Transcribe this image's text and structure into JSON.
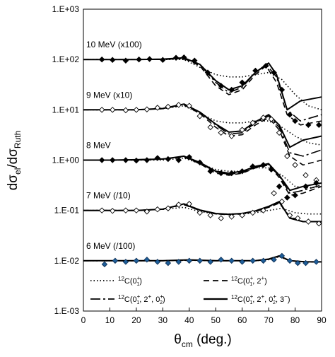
{
  "chart_data": {
    "type": "scatter",
    "title": "",
    "xlabel": {
      "main": "θ",
      "sub": "cm",
      "rest": " (deg.)"
    },
    "ylabel": {
      "d1": "dσ",
      "sub1": "el",
      "slash": "/dσ",
      "sub2": "Ruth"
    },
    "xlim": [
      0,
      90
    ],
    "ylim": [
      0.001,
      1000
    ],
    "log_y": true,
    "grid": false,
    "xticks": [
      "0",
      "10",
      "20",
      "30",
      "40",
      "50",
      "60",
      "70",
      "80",
      "90"
    ],
    "yticks": [
      "1.E-03",
      "1.E-02",
      "1.E-01",
      "1.E+00",
      "1.E+01",
      "1.E+02",
      "1.E+03"
    ],
    "legend": {
      "placement": "bottom",
      "items": [
        {
          "style": "dotted",
          "base": "12C(0",
          "sup": "+",
          "sub": "1",
          "tail": ")"
        },
        {
          "style": "dashed",
          "base": "12C(0",
          "sup": "+",
          "sub": "1",
          "tail": ", 2+)"
        },
        {
          "style": "longdash",
          "base": "12C(0",
          "sup": "+",
          "sub": "1",
          "tail": ", 2+, 0+2)"
        },
        {
          "style": "solid",
          "base": "12C(0",
          "sup": "+",
          "sub": "1",
          "tail": ", 2+, 0+2, 3−)"
        }
      ]
    },
    "energies": [
      {
        "label": "10 MeV   (x100)",
        "scale": 100,
        "marker": "filled-diamond",
        "data_x": [
          7,
          11,
          16,
          21,
          25,
          30,
          35,
          38,
          42,
          47,
          52,
          56,
          60,
          65,
          69,
          72,
          75,
          78,
          80,
          85,
          89
        ],
        "data_y": [
          1.0,
          0.98,
          0.95,
          1.0,
          1.02,
          0.98,
          1.08,
          1.1,
          0.95,
          0.55,
          0.3,
          0.25,
          0.35,
          0.6,
          0.75,
          0.55,
          0.25,
          0.08,
          0.06,
          0.05,
          0.05
        ],
        "curves": {
          "dotted": {
            "x": [
              0,
              10,
              20,
              30,
              38,
              44,
              50,
              55,
              60,
              65,
              70,
              75,
              80,
              85,
              90
            ],
            "y": [
              1.0,
              1.0,
              1.0,
              1.0,
              1.0,
              0.7,
              0.5,
              0.45,
              0.45,
              0.5,
              0.55,
              0.4,
              0.2,
              0.12,
              0.1
            ]
          },
          "dashed": {
            "x": [
              0,
              10,
              20,
              30,
              38,
              44,
              50,
              55,
              60,
              65,
              69,
              73,
              77,
              82,
              90
            ],
            "y": [
              1.0,
              1.0,
              1.0,
              1.0,
              1.05,
              0.75,
              0.3,
              0.2,
              0.25,
              0.5,
              0.75,
              0.35,
              0.08,
              0.05,
              0.06
            ]
          },
          "longdash": {
            "x": [
              0,
              10,
              20,
              30,
              38,
              44,
              50,
              55,
              60,
              65,
              69,
              73,
              77,
              82,
              90
            ],
            "y": [
              1.0,
              1.0,
              1.0,
              1.0,
              1.08,
              0.8,
              0.35,
              0.22,
              0.28,
              0.55,
              0.8,
              0.45,
              0.1,
              0.06,
              0.08
            ]
          },
          "solid": {
            "x": [
              0,
              10,
              20,
              30,
              38,
              44,
              50,
              55,
              60,
              65,
              70,
              73,
              77,
              82,
              90
            ],
            "y": [
              1.0,
              1.0,
              1.0,
              1.02,
              1.08,
              0.8,
              0.38,
              0.25,
              0.3,
              0.55,
              0.85,
              0.5,
              0.1,
              0.15,
              0.18
            ]
          }
        }
      },
      {
        "label": "9 MeV   (x10)",
        "scale": 10,
        "marker": "open-diamond",
        "data_x": [
          7,
          11,
          16,
          20,
          24,
          28,
          32,
          36,
          40,
          44,
          48,
          52,
          56,
          60,
          64,
          68,
          71,
          74,
          77,
          80,
          84,
          88
        ],
        "data_y": [
          1.0,
          1.0,
          0.98,
          1.0,
          1.02,
          1.1,
          1.15,
          1.25,
          1.2,
          0.75,
          0.45,
          0.35,
          0.3,
          0.4,
          0.55,
          0.7,
          0.65,
          0.35,
          0.12,
          0.08,
          0.05,
          0.04
        ],
        "curves": {
          "dotted": {
            "x": [
              0,
              10,
              20,
              30,
              38,
              44,
              50,
              55,
              60,
              65,
              70,
              75,
              80,
              85,
              90
            ],
            "y": [
              1.0,
              1.0,
              1.0,
              1.05,
              1.2,
              0.85,
              0.6,
              0.55,
              0.55,
              0.6,
              0.6,
              0.45,
              0.3,
              0.22,
              0.2
            ]
          },
          "dashed": {
            "x": [
              0,
              10,
              20,
              30,
              38,
              44,
              50,
              55,
              60,
              65,
              70,
              74,
              78,
              83,
              90
            ],
            "y": [
              1.0,
              1.0,
              1.0,
              1.05,
              1.25,
              0.85,
              0.45,
              0.3,
              0.32,
              0.5,
              0.7,
              0.4,
              0.12,
              0.08,
              0.1
            ]
          },
          "longdash": {
            "x": [
              0,
              10,
              20,
              30,
              38,
              44,
              50,
              55,
              60,
              65,
              70,
              74,
              78,
              83,
              90
            ],
            "y": [
              1.0,
              1.0,
              1.0,
              1.06,
              1.28,
              0.9,
              0.5,
              0.33,
              0.35,
              0.55,
              0.75,
              0.45,
              0.14,
              0.12,
              0.16
            ]
          },
          "solid": {
            "x": [
              0,
              10,
              20,
              30,
              38,
              44,
              50,
              55,
              60,
              65,
              70,
              74,
              78,
              83,
              90
            ],
            "y": [
              1.0,
              1.0,
              1.0,
              1.06,
              1.3,
              0.9,
              0.52,
              0.36,
              0.38,
              0.58,
              0.8,
              0.5,
              0.18,
              0.25,
              0.3
            ]
          }
        }
      },
      {
        "label": "8 MeV",
        "scale": 1,
        "marker": "filled-diamond",
        "data_x": [
          7,
          11,
          16,
          20,
          24,
          28,
          32,
          36,
          40,
          44,
          48,
          52,
          56,
          60,
          64,
          68,
          71,
          74,
          77,
          80,
          84,
          88
        ],
        "data_y": [
          1.0,
          1.0,
          1.0,
          0.98,
          1.0,
          1.1,
          1.05,
          1.0,
          1.15,
          0.9,
          0.6,
          0.55,
          0.55,
          0.6,
          0.75,
          0.8,
          0.65,
          0.3,
          0.18,
          0.2,
          0.3,
          0.35
        ],
        "curves": {
          "dotted": {
            "x": [
              0,
              10,
              20,
              30,
              38,
              44,
              50,
              55,
              60,
              65,
              70,
              75,
              80,
              85,
              90
            ],
            "y": [
              1.0,
              1.0,
              1.0,
              1.0,
              1.1,
              0.85,
              0.65,
              0.6,
              0.6,
              0.7,
              0.7,
              0.5,
              0.3,
              0.28,
              0.3
            ]
          },
          "dashed": {
            "x": [
              0,
              10,
              20,
              30,
              38,
              44,
              50,
              55,
              60,
              65,
              70,
              74,
              78,
              83,
              90
            ],
            "y": [
              1.0,
              1.0,
              1.0,
              1.05,
              1.15,
              0.85,
              0.55,
              0.5,
              0.55,
              0.7,
              0.8,
              0.45,
              0.2,
              0.22,
              0.3
            ]
          },
          "longdash": {
            "x": [
              0,
              10,
              20,
              30,
              38,
              44,
              50,
              55,
              60,
              65,
              70,
              74,
              78,
              83,
              90
            ],
            "y": [
              1.0,
              1.0,
              1.02,
              1.06,
              1.18,
              0.88,
              0.58,
              0.52,
              0.57,
              0.72,
              0.82,
              0.48,
              0.22,
              0.25,
              0.32
            ]
          },
          "solid": {
            "x": [
              0,
              10,
              20,
              30,
              38,
              44,
              50,
              55,
              60,
              65,
              70,
              74,
              78,
              83,
              90
            ],
            "y": [
              1.0,
              1.0,
              1.02,
              1.05,
              1.2,
              0.9,
              0.6,
              0.55,
              0.6,
              0.75,
              0.85,
              0.5,
              0.25,
              0.3,
              0.35
            ]
          }
        }
      },
      {
        "label": "7 MeV   (/10)",
        "scale": 0.1,
        "marker": "open-diamond",
        "data_x": [
          7,
          11,
          16,
          20,
          24,
          28,
          32,
          36,
          40,
          44,
          48,
          52,
          56,
          60,
          64,
          68,
          72,
          75,
          78,
          81,
          85,
          89
        ],
        "data_y": [
          1.0,
          0.98,
          1.0,
          1.0,
          0.95,
          1.05,
          1.1,
          1.3,
          1.35,
          0.9,
          0.8,
          0.7,
          0.75,
          0.8,
          0.9,
          1.0,
          2.2,
          1.5,
          0.8,
          0.7,
          0.6,
          0.55
        ],
        "curves": {
          "dotted": {
            "x": [
              0,
              10,
              20,
              30,
              38,
              44,
              50,
              55,
              60,
              65,
              70,
              75,
              80,
              85,
              90
            ],
            "y": [
              1.0,
              1.0,
              1.0,
              1.05,
              1.15,
              0.95,
              0.85,
              0.85,
              0.85,
              0.9,
              1.0,
              1.1,
              0.9,
              0.85,
              0.85
            ]
          },
          "dashed": {
            "x": [
              0,
              10,
              20,
              30,
              38,
              44,
              50,
              55,
              60,
              65,
              70,
              74,
              78,
              83,
              90
            ],
            "y": [
              1.0,
              1.0,
              1.0,
              1.06,
              1.3,
              1.0,
              0.85,
              0.82,
              0.85,
              0.95,
              1.15,
              1.4,
              0.75,
              0.6,
              0.6
            ]
          },
          "longdash": {
            "x": [
              0,
              10,
              20,
              30,
              38,
              44,
              50,
              55,
              60,
              65,
              70,
              74,
              78,
              83,
              90
            ],
            "y": [
              1.0,
              1.0,
              1.0,
              1.06,
              1.32,
              1.0,
              0.86,
              0.83,
              0.86,
              0.96,
              1.18,
              1.45,
              0.72,
              0.6,
              0.6
            ]
          },
          "solid": {
            "x": [
              0,
              10,
              20,
              30,
              38,
              44,
              50,
              55,
              60,
              65,
              70,
              74,
              78,
              83,
              90
            ],
            "y": [
              1.0,
              1.0,
              1.0,
              1.06,
              1.35,
              1.02,
              0.87,
              0.84,
              0.87,
              0.98,
              1.2,
              1.5,
              0.7,
              0.6,
              0.6
            ]
          }
        }
      },
      {
        "label": "6 MeV   (/100)",
        "scale": 0.01,
        "marker": "blue-diamond",
        "data_x": [
          8,
          12,
          16,
          20,
          24,
          28,
          32,
          36,
          40,
          44,
          48,
          52,
          56,
          60,
          64,
          68,
          72,
          75,
          78,
          81,
          84,
          88
        ],
        "data_y": [
          0.85,
          1.0,
          0.95,
          1.0,
          1.05,
          0.95,
          0.9,
          0.95,
          1.0,
          1.0,
          0.95,
          1.05,
          1.0,
          0.95,
          1.0,
          1.0,
          1.05,
          1.25,
          1.0,
          0.9,
          0.9,
          0.95
        ],
        "curves": {
          "dotted": {
            "x": [
              0,
              10,
              20,
              30,
              40,
              50,
              60,
              65,
              70,
              74,
              78,
              84,
              90
            ],
            "y": [
              1.0,
              1.0,
              1.0,
              1.0,
              1.02,
              1.0,
              1.0,
              1.0,
              1.05,
              1.2,
              1.0,
              0.95,
              0.95
            ]
          },
          "dashed": {
            "x": [
              0,
              10,
              20,
              30,
              40,
              50,
              60,
              65,
              70,
              74,
              78,
              84,
              90
            ],
            "y": [
              1.0,
              1.0,
              1.0,
              1.0,
              1.03,
              1.0,
              1.0,
              1.0,
              1.06,
              1.22,
              1.0,
              0.95,
              0.95
            ]
          },
          "longdash": {
            "x": [
              0,
              10,
              20,
              30,
              40,
              50,
              60,
              65,
              70,
              74,
              78,
              84,
              90
            ],
            "y": [
              1.0,
              1.0,
              1.0,
              1.0,
              1.03,
              1.0,
              1.0,
              1.0,
              1.07,
              1.24,
              1.0,
              0.95,
              0.95
            ]
          },
          "solid": {
            "x": [
              0,
              10,
              20,
              30,
              40,
              50,
              60,
              65,
              70,
              74,
              78,
              84,
              90
            ],
            "y": [
              1.0,
              1.0,
              1.0,
              1.0,
              1.04,
              1.0,
              1.0,
              1.0,
              1.08,
              1.25,
              1.0,
              0.95,
              0.95
            ]
          }
        }
      }
    ]
  }
}
